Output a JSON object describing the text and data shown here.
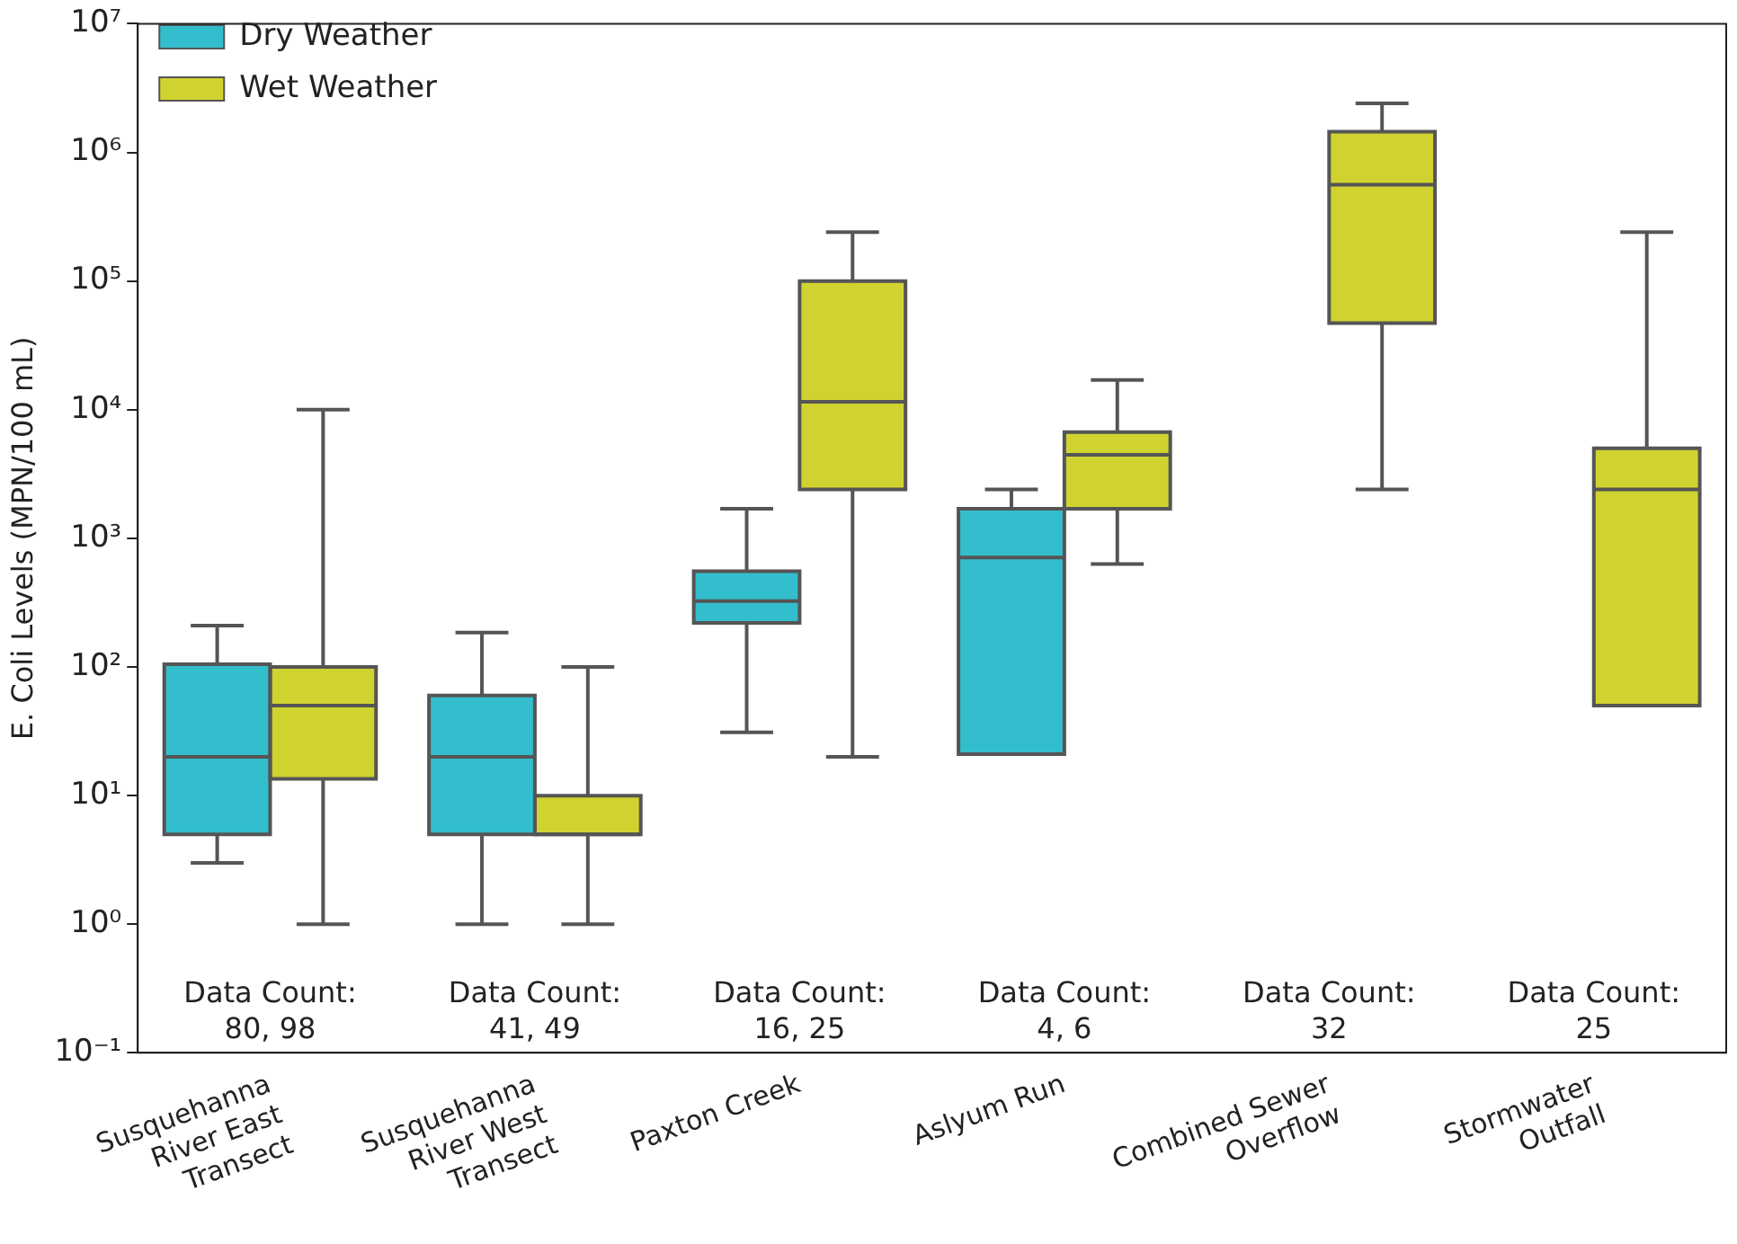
{
  "chart_data": {
    "type": "box",
    "ylabel": "E. Coli Levels (MPN/100 mL)",
    "categories": [
      "Susquehanna\nRiver East\nTransect",
      "Susquehanna\nRiver West\nTransect",
      "Paxton Creek",
      "Aslyum Run",
      "Combined Sewer\nOverflow",
      "Stormwater\nOutfall"
    ],
    "series": [
      {
        "name": "Dry Weather",
        "color": "#33becd",
        "boxes": [
          {
            "low": 3,
            "q1": 5,
            "median": 20,
            "q3": 105,
            "high": 210
          },
          {
            "low": 1,
            "q1": 5,
            "median": 20,
            "q3": 60,
            "high": 185
          },
          {
            "low": 31,
            "q1": 220,
            "median": 325,
            "q3": 555,
            "high": 1700
          },
          {
            "low": 21,
            "q1": 21,
            "median": 710,
            "q3": 1700,
            "high": 2400
          },
          null,
          null
        ]
      },
      {
        "name": "Wet Weather",
        "color": "#d0d32f",
        "boxes": [
          {
            "low": 1,
            "q1": 13.5,
            "median": 50,
            "q3": 100,
            "high": 10000
          },
          {
            "low": 1,
            "q1": 5,
            "median": 5,
            "q3": 10,
            "high": 100
          },
          {
            "low": 20,
            "q1": 2400,
            "median": 11500,
            "q3": 100000,
            "high": 240000
          },
          {
            "low": 630,
            "q1": 1700,
            "median": 4450,
            "q3": 6700,
            "high": 17000
          },
          {
            "low": 2400,
            "q1": 47000,
            "median": 560000,
            "q3": 1450000,
            "high": 2400000
          },
          {
            "low": 50,
            "q1": 50,
            "median": 2400,
            "q3": 5000,
            "high": 240000
          }
        ]
      }
    ],
    "log": "y",
    "ylim": [
      0.1,
      10000000
    ],
    "yticks": [
      {
        "value": 0.1,
        "label": "10⁻¹"
      },
      {
        "value": 1,
        "label": "10⁰"
      },
      {
        "value": 10,
        "label": "10¹"
      },
      {
        "value": 100,
        "label": "10²"
      },
      {
        "value": 1000,
        "label": "10³"
      },
      {
        "value": 10000,
        "label": "10⁴"
      },
      {
        "value": 100000,
        "label": "10⁵"
      },
      {
        "value": 1000000,
        "label": "10⁶"
      },
      {
        "value": 10000000,
        "label": "10⁷"
      }
    ],
    "annotations": [
      "Data Count:\n80, 98",
      "Data Count:\n41, 49",
      "Data Count:\n16, 25",
      "Data Count:\n4, 6",
      "Data Count:\n32",
      "Data Count:\n25"
    ],
    "legend": "top left",
    "grid": false
  }
}
